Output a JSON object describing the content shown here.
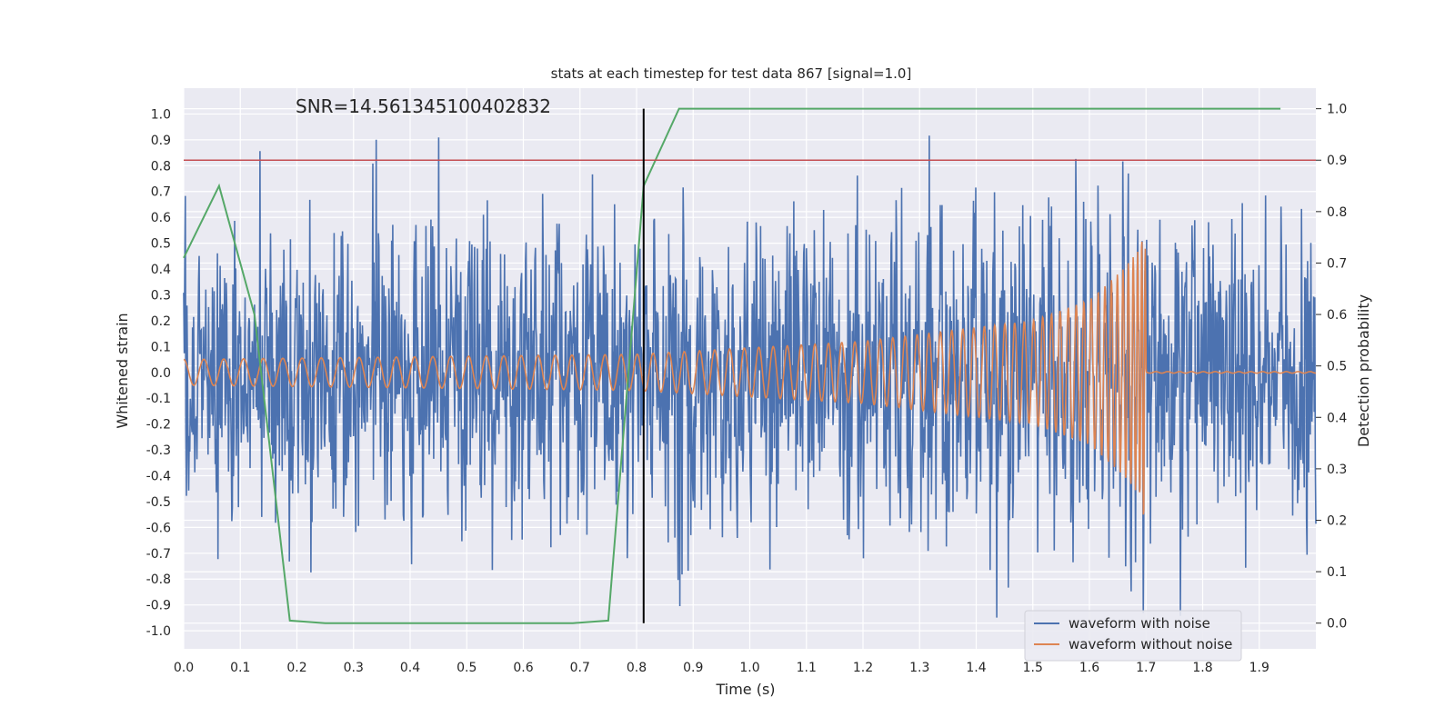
{
  "chart_data": {
    "type": "line",
    "title": "stats at each timestep for test data 867 [signal=1.0]",
    "annotation": "SNR=14.561345100402832",
    "xlabel": "Time (s)",
    "ylabel_left": "Whitened strain",
    "ylabel_right": "Detection probability",
    "xlim": [
      0.0,
      2.0
    ],
    "ylim_left": [
      -1.07,
      1.1
    ],
    "ylim_right": [
      -0.05,
      1.04
    ],
    "x_ticks": [
      0.0,
      0.1,
      0.2,
      0.3,
      0.4,
      0.5,
      0.6,
      0.7,
      0.8,
      0.9,
      1.0,
      1.1,
      1.2,
      1.3,
      1.4,
      1.5,
      1.6,
      1.7,
      1.8,
      1.9
    ],
    "y_ticks_left": [
      -1.0,
      -0.9,
      -0.8,
      -0.7,
      -0.6,
      -0.5,
      -0.4,
      -0.3,
      -0.2,
      -0.1,
      0.0,
      0.1,
      0.2,
      0.3,
      0.4,
      0.5,
      0.6,
      0.7,
      0.8,
      0.9,
      1.0
    ],
    "y_ticks_right": [
      0.0,
      0.1,
      0.2,
      0.3,
      0.4,
      0.5,
      0.6,
      0.7,
      0.8,
      0.9,
      1.0
    ],
    "grid": true,
    "legend_position": "bottom-right",
    "legend": [
      "waveform with noise",
      "waveform without noise"
    ],
    "noisy_waveform": {
      "name": "waveform with noise",
      "color": "#4c72b0",
      "y_range": [
        -0.97,
        0.99
      ],
      "noise_std": 0.28
    },
    "clean_waveform": {
      "name": "waveform without noise",
      "color": "#dd8452",
      "chirp_start_freq_hz": 28,
      "chirp_end_time_s": 1.7,
      "envelope": [
        {
          "x": 0.0,
          "y": 0.05
        },
        {
          "x": 0.8,
          "y": 0.07
        },
        {
          "x": 1.2,
          "y": 0.12
        },
        {
          "x": 1.5,
          "y": 0.2
        },
        {
          "x": 1.6,
          "y": 0.28
        },
        {
          "x": 1.66,
          "y": 0.4
        },
        {
          "x": 1.69,
          "y": 0.48
        },
        {
          "x": 1.697,
          "y": 0.6
        },
        {
          "x": 1.705,
          "y": 0.02
        },
        {
          "x": 2.0,
          "y": 0.0
        }
      ]
    },
    "detection_probability": {
      "color": "#55a868",
      "points": [
        {
          "x": 0.0,
          "y": 0.71
        },
        {
          "x": 0.0625,
          "y": 0.85
        },
        {
          "x": 0.125,
          "y": 0.6
        },
        {
          "x": 0.1875,
          "y": 0.005
        },
        {
          "x": 0.25,
          "y": 0.0
        },
        {
          "x": 0.6875,
          "y": 0.0
        },
        {
          "x": 0.75,
          "y": 0.005
        },
        {
          "x": 0.8125,
          "y": 0.85
        },
        {
          "x": 0.875,
          "y": 1.0
        },
        {
          "x": 1.9375,
          "y": 1.0
        }
      ]
    },
    "threshold_line": {
      "y": 0.9,
      "axis": "right",
      "color": "#c44e52"
    },
    "vertical_marker": {
      "x": 0.8125,
      "color": "#000000"
    }
  }
}
